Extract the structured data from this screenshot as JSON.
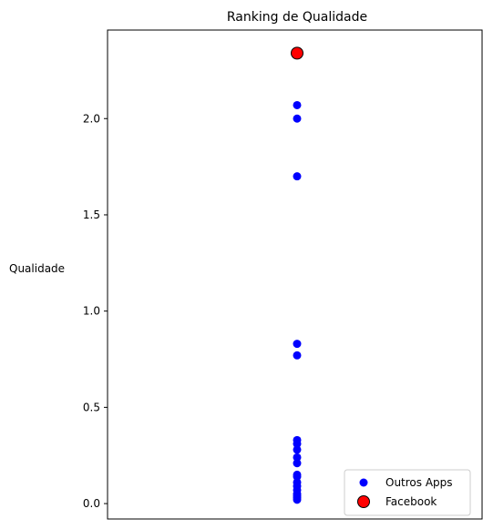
{
  "chart_data": {
    "type": "scatter",
    "title": "Ranking de Qualidade",
    "xlabel": "",
    "ylabel": "Qualidade",
    "ylim": [
      -0.08,
      2.46
    ],
    "yticks": [
      0.0,
      0.5,
      1.0,
      1.5,
      2.0
    ],
    "ytick_labels": [
      "0.0",
      "0.5",
      "1.0",
      "1.5",
      "2.0"
    ],
    "grid": false,
    "legend_position": "bottom-right",
    "series": [
      {
        "name": "Outros Apps",
        "color": "#0000ff",
        "marker": "circle",
        "x": [
          0,
          0,
          0,
          0,
          0,
          0,
          0,
          0,
          0,
          0,
          0,
          0,
          0,
          0,
          0,
          0,
          0,
          0,
          0
        ],
        "y": [
          2.07,
          2.0,
          1.7,
          0.83,
          0.77,
          0.33,
          0.31,
          0.28,
          0.24,
          0.21,
          0.15,
          0.14,
          0.11,
          0.09,
          0.07,
          0.05,
          0.04,
          0.03,
          0.02
        ]
      },
      {
        "name": "Facebook",
        "color": "#ff0000",
        "edge_color": "#000000",
        "marker": "circle-large",
        "x": [
          0
        ],
        "y": [
          2.34
        ]
      }
    ]
  }
}
